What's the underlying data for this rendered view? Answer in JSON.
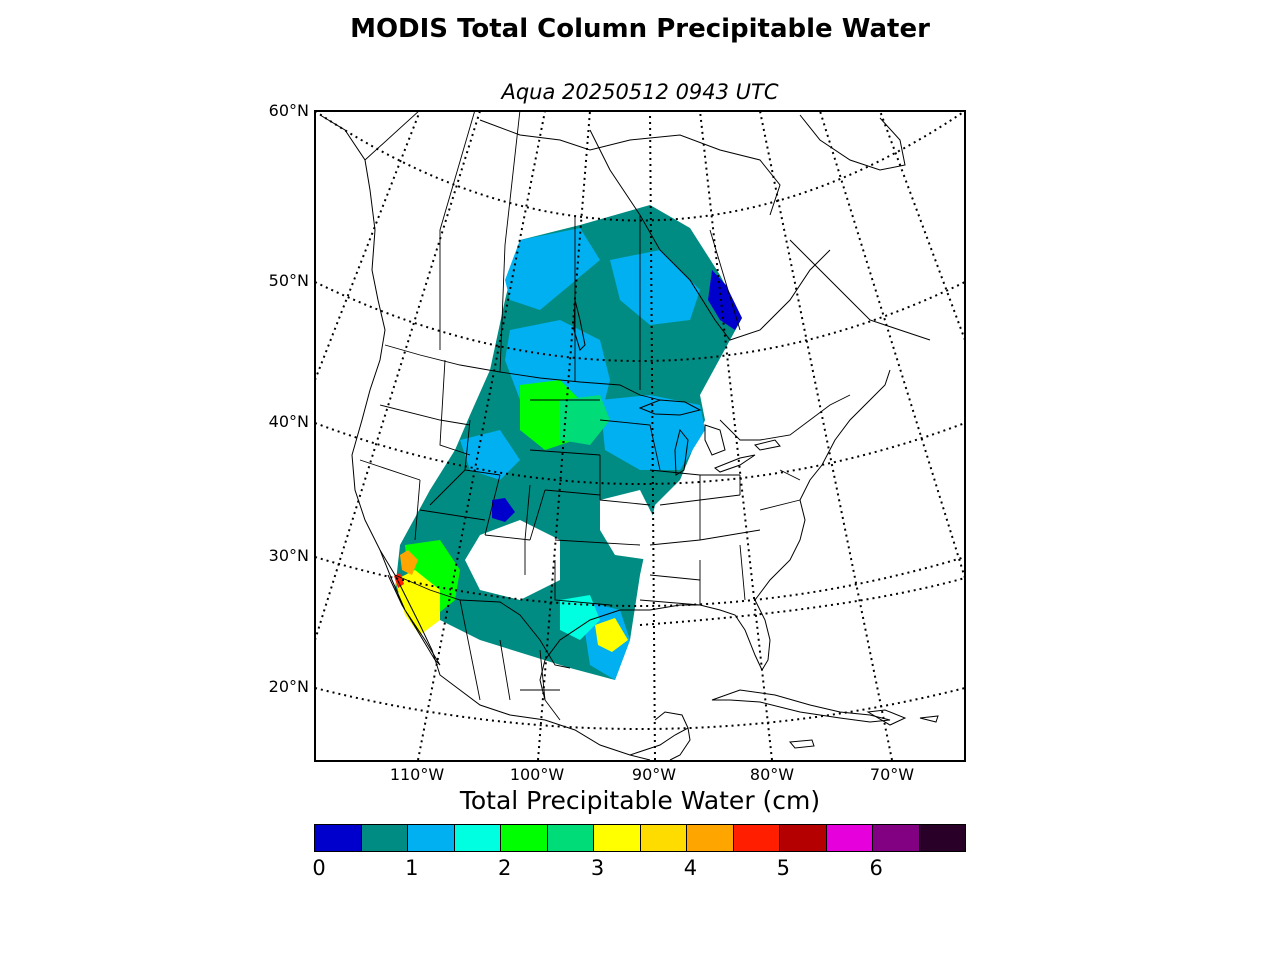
{
  "title": "MODIS Total Column Precipitable Water",
  "subtitle": "Aqua 20250512 0943 UTC",
  "lat_labels": [
    "60°N",
    "50°N",
    "40°N",
    "30°N",
    "20°N"
  ],
  "lon_labels": [
    "110°W",
    "100°W",
    "90°W",
    "80°W",
    "70°W"
  ],
  "colorbar": {
    "title": "Total Precipitable Water (cm)",
    "ticks": [
      "0",
      "1",
      "2",
      "3",
      "4",
      "5",
      "6"
    ],
    "colors": [
      "#0000cc",
      "#008c82",
      "#00b0f0",
      "#00ffe0",
      "#00ff00",
      "#00dc78",
      "#ffff00",
      "#ffdc00",
      "#ffa500",
      "#ff1e00",
      "#b40000",
      "#e600dc",
      "#820082",
      "#280028"
    ]
  }
}
